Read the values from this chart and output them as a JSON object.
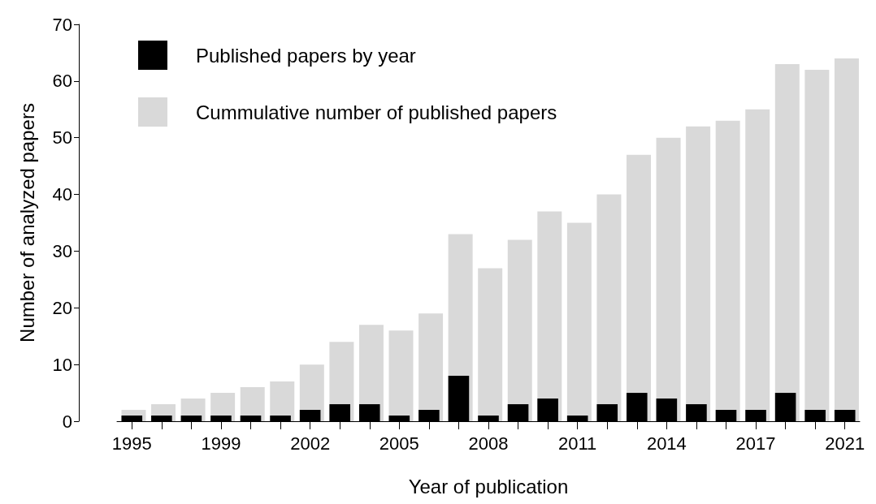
{
  "chart_data": {
    "type": "bar",
    "xlabel": "Year of publication",
    "ylabel": "Number of analyzed papers",
    "categories": [
      "1995",
      null,
      null,
      "1999",
      null,
      null,
      "2002",
      null,
      null,
      "2005",
      null,
      null,
      "2008",
      null,
      null,
      "2011",
      null,
      null,
      "2014",
      null,
      null,
      "2017",
      null,
      null,
      "2021"
    ],
    "series": [
      {
        "name": "Cummulative number of published papers",
        "color": "#d9d9d9",
        "values": [
          2,
          3,
          4,
          5,
          6,
          7,
          10,
          14,
          17,
          16,
          19,
          33,
          27,
          32,
          37,
          35,
          40,
          47,
          50,
          52,
          53,
          55,
          63,
          62,
          64
        ]
      },
      {
        "name": "Published papers by year",
        "color": "#000000",
        "values": [
          1,
          1,
          1,
          1,
          1,
          1,
          2,
          3,
          3,
          1,
          2,
          8,
          1,
          3,
          4,
          1,
          3,
          5,
          4,
          3,
          2,
          2,
          5,
          2,
          2
        ]
      }
    ],
    "ylim": [
      0,
      70
    ],
    "yticks": [
      0,
      10,
      20,
      30,
      40,
      50,
      60,
      70
    ],
    "grid": false,
    "legend": "top left"
  }
}
